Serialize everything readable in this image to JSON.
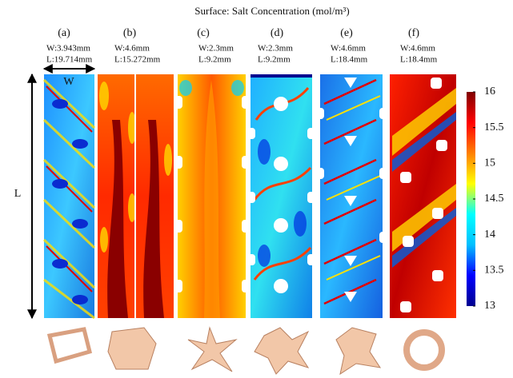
{
  "title": "Surface: Salt Concentration (mol/m³)",
  "panels": [
    {
      "label": "(a)",
      "width": "W:3.943mm",
      "length": "L:19.714mm"
    },
    {
      "label": "(b)",
      "width": "W:4.6mm",
      "length": "L:15.272mm"
    },
    {
      "label": "(c)",
      "width": "W:2.3mm",
      "length": "L:9.2mm"
    },
    {
      "label": "(d)",
      "width": "W:2.3mm",
      "length": "L:9.2mm"
    },
    {
      "label": "(e)",
      "width": "W:4.6mm",
      "length": "L:18.4mm"
    },
    {
      "label": "(f)",
      "width": "W:4.6mm",
      "length": "L:18.4mm"
    }
  ],
  "dimension_labels": {
    "width": "W",
    "length": "L"
  },
  "colorbar": {
    "lim": [
      13,
      16
    ],
    "ticks": [
      13,
      13.5,
      14,
      14.5,
      15,
      15.5,
      16
    ],
    "colormap": [
      "#00008f",
      "#0000ff",
      "#00bfff",
      "#00ffff",
      "#ffff00",
      "#ff7f00",
      "#ff0000",
      "#800000"
    ]
  }
}
